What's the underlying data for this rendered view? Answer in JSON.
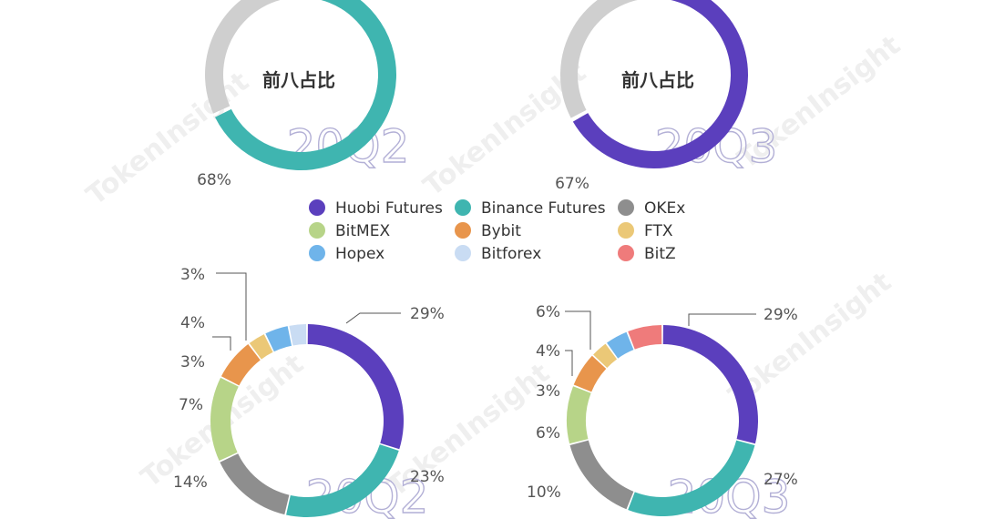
{
  "watermark": "TokenInsight",
  "legend": [
    {
      "name": "Huobi Futures",
      "color": "#5b3fbd"
    },
    {
      "name": "Binance Futures",
      "color": "#3fb5b0"
    },
    {
      "name": "OKEx",
      "color": "#8e8e8e"
    },
    {
      "name": "BitMEX",
      "color": "#b7d488"
    },
    {
      "name": "Bybit",
      "color": "#e8954c"
    },
    {
      "name": "FTX",
      "color": "#ebc877"
    },
    {
      "name": "Hopex",
      "color": "#6fb4ea"
    },
    {
      "name": "Bitforex",
      "color": "#c9dcf3"
    },
    {
      "name": "BitZ",
      "color": "#ef7b7b"
    }
  ],
  "chart_data": [
    {
      "type": "pie",
      "center_title": "前八占比",
      "period_label": "20Q2",
      "labels": [
        "Top 8",
        "Others"
      ],
      "values": [
        68,
        32
      ],
      "value_labels": [
        "68%",
        ""
      ],
      "colors": [
        "#3fb5b0",
        "#cfcfcf"
      ]
    },
    {
      "type": "pie",
      "center_title": "前八占比",
      "period_label": "20Q3",
      "labels": [
        "Top 8",
        "Others"
      ],
      "values": [
        67,
        33
      ],
      "value_labels": [
        "67%",
        ""
      ],
      "colors": [
        "#5b3fbd",
        "#cfcfcf"
      ]
    },
    {
      "type": "pie",
      "period_label": "20Q2",
      "labels": [
        "Huobi Futures",
        "Binance Futures",
        "OKEx",
        "BitMEX",
        "Bybit",
        "FTX",
        "Hopex",
        "Bitforex"
      ],
      "values": [
        29,
        23,
        14,
        14,
        7,
        3,
        4,
        3
      ],
      "value_labels": [
        "29%",
        "23%",
        "",
        "14%",
        "7%",
        "3%",
        "4%",
        "3%"
      ],
      "colors": [
        "#5b3fbd",
        "#3fb5b0",
        "#8e8e8e",
        "#b7d488",
        "#e8954c",
        "#ebc877",
        "#6fb4ea",
        "#c9dcf3"
      ]
    },
    {
      "type": "pie",
      "period_label": "20Q3",
      "labels": [
        "Huobi Futures",
        "Binance Futures",
        "OKEx",
        "BitMEX",
        "Bybit",
        "FTX",
        "Hopex",
        "BitZ"
      ],
      "values": [
        29,
        27,
        15,
        10,
        6,
        3,
        4,
        6
      ],
      "value_labels": [
        "29%",
        "27%",
        "",
        "10%",
        "6%",
        "3%",
        "4%",
        "6%"
      ],
      "colors": [
        "#5b3fbd",
        "#3fb5b0",
        "#8e8e8e",
        "#b7d488",
        "#e8954c",
        "#ebc877",
        "#6fb4ea",
        "#ef7b7b"
      ]
    }
  ]
}
